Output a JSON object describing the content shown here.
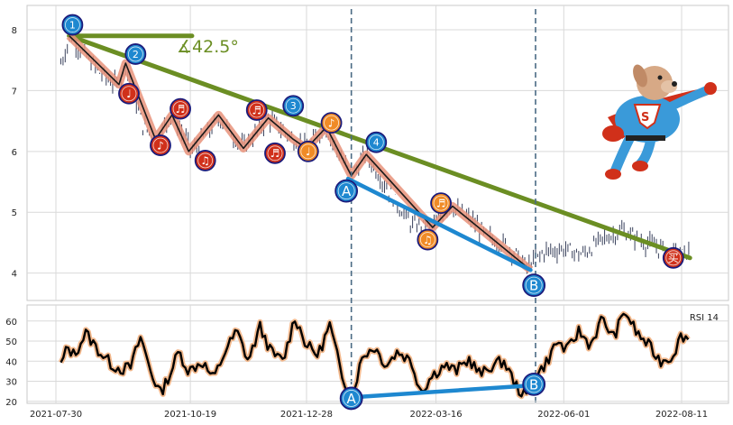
{
  "chart_data": {
    "type": "line",
    "main": {
      "yticks": [
        4,
        5,
        6,
        7,
        8
      ],
      "ylim": [
        3.55,
        8.4
      ],
      "price_start": 7.6,
      "price_points": [
        [
          "2021-08-02",
          7.45
        ],
        [
          "2021-08-08",
          7.9
        ],
        [
          "2021-08-16",
          7.6
        ],
        [
          "2021-08-25",
          7.3
        ],
        [
          "2021-09-06",
          7.05
        ],
        [
          "2021-09-10",
          7.45
        ],
        [
          "2021-09-20",
          6.45
        ],
        [
          "2021-09-28",
          6.2
        ],
        [
          "2021-10-08",
          6.6
        ],
        [
          "2021-10-20",
          6.0
        ],
        [
          "2021-11-06",
          6.55
        ],
        [
          "2021-11-20",
          6.05
        ],
        [
          "2021-12-05",
          6.55
        ],
        [
          "2021-12-20",
          6.2
        ],
        [
          "2021-12-28",
          6.05
        ],
        [
          "2022-01-08",
          6.4
        ],
        [
          "2022-01-24",
          5.6
        ],
        [
          "2022-02-02",
          5.95
        ],
        [
          "2022-02-18",
          5.25
        ],
        [
          "2022-03-01",
          4.8
        ],
        [
          "2022-03-14",
          4.75
        ],
        [
          "2022-03-24",
          5.1
        ],
        [
          "2022-04-05",
          4.9
        ],
        [
          "2022-04-16",
          4.6
        ],
        [
          "2022-04-28",
          4.45
        ],
        [
          "2022-05-10",
          4.1
        ],
        [
          "2022-05-20",
          4.35
        ],
        [
          "2022-06-01",
          4.4
        ],
        [
          "2022-06-12",
          4.3
        ],
        [
          "2022-06-24",
          4.55
        ],
        [
          "2022-07-06",
          4.7
        ],
        [
          "2022-07-20",
          4.5
        ],
        [
          "2022-07-30",
          4.4
        ],
        [
          "2022-08-10",
          4.3
        ],
        [
          "2022-08-16",
          4.35
        ]
      ],
      "wave_path": [
        [
          "2021-08-07",
          7.9
        ],
        [
          "2021-09-06",
          7.1
        ],
        [
          "2021-09-10",
          7.45
        ],
        [
          "2021-09-28",
          6.2
        ],
        [
          "2021-10-08",
          6.6
        ],
        [
          "2021-10-18",
          6.0
        ],
        [
          "2021-11-05",
          6.6
        ],
        [
          "2021-11-20",
          6.05
        ],
        [
          "2021-12-05",
          6.55
        ],
        [
          "2021-12-20",
          6.2
        ],
        [
          "2021-12-28",
          6.05
        ],
        [
          "2022-01-09",
          6.4
        ],
        [
          "2022-01-24",
          5.6
        ],
        [
          "2022-02-02",
          5.95
        ],
        [
          "2022-03-14",
          4.75
        ],
        [
          "2022-03-26",
          5.1
        ],
        [
          "2022-05-12",
          4.05
        ]
      ],
      "trend_line": [
        [
          "2021-08-07",
          7.9
        ],
        [
          "2022-08-16",
          4.25
        ]
      ],
      "horizontal_ref": [
        [
          "2021-08-07",
          7.9
        ],
        [
          "2021-10-20",
          7.9
        ]
      ],
      "angle_label": "∡42.5°",
      "divergence_line": [
        [
          "2022-01-22",
          5.55
        ],
        [
          "2022-05-12",
          4.05
        ]
      ],
      "vertical_lines": [
        "2022-01-24",
        "2022-05-15"
      ],
      "wave_markers": [
        {
          "label": "1",
          "x": "2021-08-09",
          "y": 8.08,
          "fill": "#1e88d0"
        },
        {
          "label": "2",
          "x": "2021-09-16",
          "y": 7.6,
          "fill": "#1e88d0"
        },
        {
          "label": "3",
          "x": "2021-12-20",
          "y": 6.75,
          "fill": "#1e88d0"
        },
        {
          "label": "4",
          "x": "2022-02-08",
          "y": 6.15,
          "fill": "#1e88d0"
        }
      ],
      "music_markers": [
        {
          "label": "♩",
          "x": "2021-09-12",
          "y": 6.95,
          "fill": "#d0301a"
        },
        {
          "label": "♪",
          "x": "2021-10-01",
          "y": 6.1,
          "fill": "#d0301a"
        },
        {
          "label": "♬",
          "x": "2021-10-13",
          "y": 6.7,
          "fill": "#d0301a"
        },
        {
          "label": "♫",
          "x": "2021-10-28",
          "y": 5.85,
          "fill": "#d0301a"
        },
        {
          "label": "♬",
          "x": "2021-11-28",
          "y": 6.68,
          "fill": "#d0301a"
        },
        {
          "label": "♬",
          "x": "2021-12-09",
          "y": 5.97,
          "fill": "#d0301a"
        },
        {
          "label": "♩",
          "x": "2021-12-29",
          "y": 6.0,
          "fill": "#f08b26"
        },
        {
          "label": "♪",
          "x": "2022-01-12",
          "y": 6.47,
          "fill": "#f08b26"
        },
        {
          "label": "♫",
          "x": "2022-03-11",
          "y": 4.55,
          "fill": "#f08b26"
        },
        {
          "label": "♬",
          "x": "2022-03-19",
          "y": 5.15,
          "fill": "#f08b26"
        },
        {
          "label": "买",
          "x": "2022-08-06",
          "y": 4.25,
          "fill": "#d0301a"
        }
      ],
      "divergence_markers": [
        {
          "label": "A",
          "x": "2022-01-21",
          "y": 5.35,
          "fill": "#1e88d0"
        },
        {
          "label": "B",
          "x": "2022-05-14",
          "y": 3.8,
          "fill": "#1e88d0"
        }
      ]
    },
    "rsi": {
      "label": "RSI 14",
      "yticks": [
        20,
        30,
        40,
        50,
        60
      ],
      "ylim": [
        19,
        68
      ],
      "points": [
        [
          "2021-08-02",
          38
        ],
        [
          "2021-08-06",
          47
        ],
        [
          "2021-08-10",
          43
        ],
        [
          "2021-08-17",
          54
        ],
        [
          "2021-08-25",
          45
        ],
        [
          "2021-09-02",
          38
        ],
        [
          "2021-09-08",
          36
        ],
        [
          "2021-09-13",
          37
        ],
        [
          "2021-09-19",
          52
        ],
        [
          "2021-09-26",
          33
        ],
        [
          "2021-10-01",
          24
        ],
        [
          "2021-10-07",
          34
        ],
        [
          "2021-10-12",
          45
        ],
        [
          "2021-10-18",
          35
        ],
        [
          "2021-10-26",
          40
        ],
        [
          "2021-11-02",
          31
        ],
        [
          "2021-11-09",
          45
        ],
        [
          "2021-11-16",
          55
        ],
        [
          "2021-11-23",
          40
        ],
        [
          "2021-11-30",
          57
        ],
        [
          "2021-12-07",
          44
        ],
        [
          "2021-12-14",
          40
        ],
        [
          "2021-12-21",
          62
        ],
        [
          "2021-12-28",
          48
        ],
        [
          "2022-01-04",
          43
        ],
        [
          "2022-01-11",
          58
        ],
        [
          "2022-01-18",
          34
        ],
        [
          "2022-01-24",
          22
        ],
        [
          "2022-01-31",
          43
        ],
        [
          "2022-02-07",
          47
        ],
        [
          "2022-02-14",
          38
        ],
        [
          "2022-02-21",
          45
        ],
        [
          "2022-03-01",
          40
        ],
        [
          "2022-03-07",
          25
        ],
        [
          "2022-03-14",
          33
        ],
        [
          "2022-03-21",
          38
        ],
        [
          "2022-03-28",
          35
        ],
        [
          "2022-04-05",
          41
        ],
        [
          "2022-04-12",
          33
        ],
        [
          "2022-04-19",
          38
        ],
        [
          "2022-04-26",
          40
        ],
        [
          "2022-05-03",
          28
        ],
        [
          "2022-05-09",
          22
        ],
        [
          "2022-05-15",
          32
        ],
        [
          "2022-05-22",
          40
        ],
        [
          "2022-05-28",
          50
        ],
        [
          "2022-06-03",
          45
        ],
        [
          "2022-06-10",
          55
        ],
        [
          "2022-06-17",
          48
        ],
        [
          "2022-06-24",
          61
        ],
        [
          "2022-07-01",
          52
        ],
        [
          "2022-07-08",
          65
        ],
        [
          "2022-07-15",
          54
        ],
        [
          "2022-07-22",
          48
        ],
        [
          "2022-07-29",
          40
        ],
        [
          "2022-08-05",
          42
        ],
        [
          "2022-08-11",
          53
        ],
        [
          "2022-08-16",
          51
        ]
      ],
      "divergence_line": [
        [
          "2022-01-24",
          22
        ],
        [
          "2022-05-14",
          28
        ]
      ],
      "divergence_markers": [
        {
          "label": "A",
          "x": "2022-01-24",
          "y": 21.5,
          "fill": "#1e88d0"
        },
        {
          "label": "B",
          "x": "2022-05-14",
          "y": 28.5,
          "fill": "#1e88d0"
        }
      ]
    },
    "x_ticks": [
      {
        "label": "2021-07-30",
        "x": "2021-07-30"
      },
      {
        "label": "2021-10-19",
        "x": "2021-10-19"
      },
      {
        "label": "2021-12-28",
        "x": "2021-12-28"
      },
      {
        "label": "2022-03-16",
        "x": "2022-03-16"
      },
      {
        "label": "2022-06-01",
        "x": "2022-06-01"
      },
      {
        "label": "2022-08-11",
        "x": "2022-08-11"
      }
    ],
    "colors": {
      "candle": "#39415c",
      "wave_halo": "#e8927a",
      "wave_line": "#1a1a1a",
      "trend": "#6b8e23",
      "divergence": "#1e88d0",
      "vline": "#4a6a84",
      "rsi_line": "#000000",
      "rsi_halo": "#f2b88c"
    }
  }
}
